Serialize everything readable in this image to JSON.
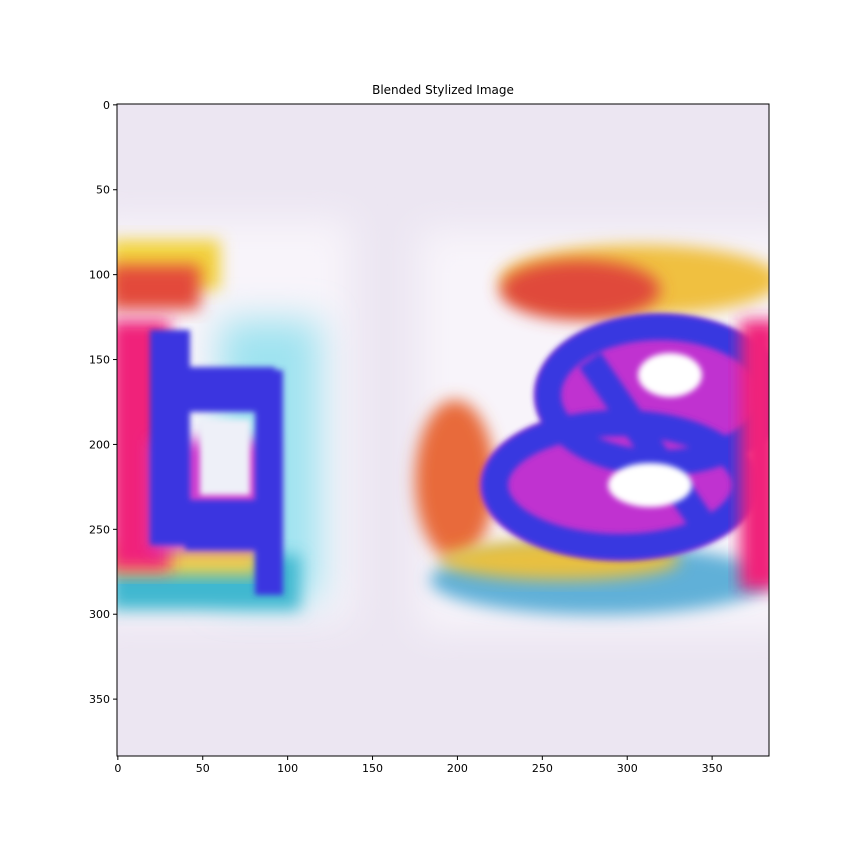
{
  "chart_data": {
    "type": "image",
    "title": "Blended Stylized Image",
    "xlim": [
      -0.5,
      383.5
    ],
    "xticks": [
      0,
      50,
      100,
      150,
      200,
      250,
      300,
      350
    ],
    "ylim": [
      383.5,
      -0.5
    ],
    "yticks": [
      0,
      50,
      100,
      150,
      200,
      250,
      300,
      350
    ]
  }
}
